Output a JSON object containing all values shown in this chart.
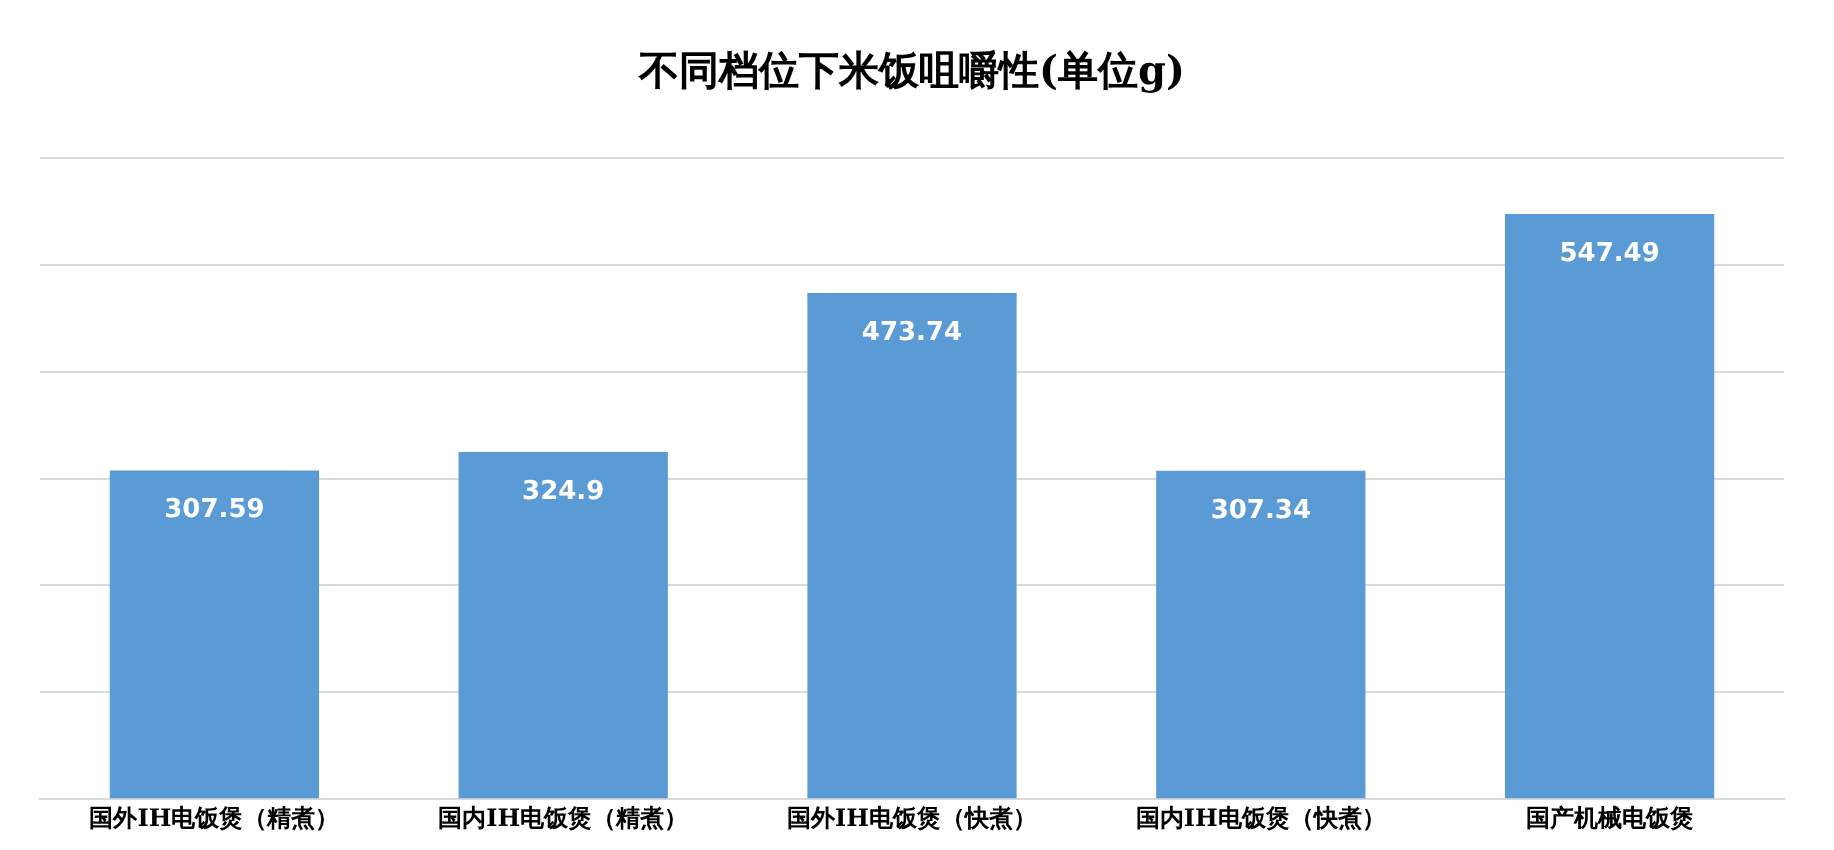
{
  "chart_data": {
    "type": "bar",
    "title": "不同档位下米饭咀嚼性(单位g)",
    "categories": [
      "国外IH电饭煲（精煮）",
      "国内IH电饭煲（精煮）",
      "国外IH电饭煲（快煮）",
      "国内IH电饭煲（快煮）",
      "国产机械电饭煲"
    ],
    "values": [
      307.59,
      324.9,
      473.74,
      307.34,
      547.49
    ],
    "color": "#5b9bd5",
    "ylim": [
      0,
      600
    ],
    "yticks": [
      {
        "value": 0,
        "label": null
      },
      {
        "value": 100,
        "label": null
      },
      {
        "value": 200,
        "label": null
      },
      {
        "value": 300,
        "label": null
      },
      {
        "value": 400,
        "label": null
      },
      {
        "value": 500,
        "label": null
      },
      {
        "value": 600,
        "label": null
      }
    ],
    "tick_labels": "x",
    "grid": "y",
    "legend": false,
    "data_labels": true
  }
}
